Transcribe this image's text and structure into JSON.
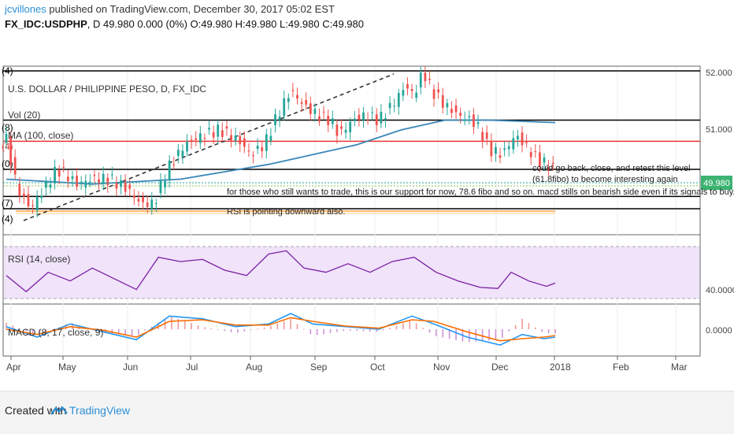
{
  "header": {
    "user": "jcvillones",
    "published": " published on TradingView.com, December 30, 2017 05:02 EST",
    "symbol": "FX_IDC:USDPHP",
    "ohlc": ", D 49.980 0.000 (0%) O:49.980 H:49.980 L:49.980 C:49.980"
  },
  "legend": {
    "title": "U.S. DOLLAR / PHILIPPINE PESO, D, FX_IDC",
    "vol": "Vol (20)",
    "ma": "MA (100, close)",
    "rsi": "RSI (14, close)",
    "macd": "MACD (8, 17, close, 9)"
  },
  "annotations": [
    "could go back, close, and retest this level",
    "(61.8fibo) to become interesting again",
    "for those who still wants to trade, this is our support for now, 78.6 fibo and so on. macd stills on bearish side even if its signals to buy.",
    "RSI is pointing downward also."
  ],
  "fib_tags": [
    "(4)",
    "(8)",
    "(4)",
    "(0)",
    "(7)",
    "(4)"
  ],
  "footer": {
    "created": "Created with",
    "brand": "TradingView"
  },
  "chart_data": {
    "type": "line",
    "title": "U.S. DOLLAR / PHILIPPINE PESO, D, FX_IDC",
    "price_axis": {
      "ylim": [
        48.8,
        52.0
      ],
      "ticks": [
        "52.000",
        "51.000"
      ],
      "last_price": "49.980"
    },
    "x_ticks": [
      "Apr",
      "May",
      "Jun",
      "Jul",
      "Aug",
      "Sep",
      "Oct",
      "Nov",
      "Dec",
      "2018",
      "Feb",
      "Mar"
    ],
    "price_series": [
      {
        "x": 1,
        "y": 50.6
      },
      {
        "x": 6,
        "y": 49.6
      },
      {
        "x": 12,
        "y": 49.2
      },
      {
        "x": 18,
        "y": 49.6
      },
      {
        "x": 24,
        "y": 50.0
      },
      {
        "x": 28,
        "y": 49.9
      },
      {
        "x": 33,
        "y": 49.7
      },
      {
        "x": 40,
        "y": 49.8
      },
      {
        "x": 48,
        "y": 49.8
      },
      {
        "x": 56,
        "y": 49.6
      },
      {
        "x": 62,
        "y": 49.3
      },
      {
        "x": 68,
        "y": 49.3
      },
      {
        "x": 74,
        "y": 50.0
      },
      {
        "x": 82,
        "y": 50.5
      },
      {
        "x": 90,
        "y": 50.7
      },
      {
        "x": 98,
        "y": 50.8
      },
      {
        "x": 106,
        "y": 50.6
      },
      {
        "x": 112,
        "y": 50.3
      },
      {
        "x": 118,
        "y": 50.5
      },
      {
        "x": 124,
        "y": 51.1
      },
      {
        "x": 130,
        "y": 51.6
      },
      {
        "x": 136,
        "y": 51.3
      },
      {
        "x": 142,
        "y": 51.1
      },
      {
        "x": 148,
        "y": 51.0
      },
      {
        "x": 152,
        "y": 50.7
      },
      {
        "x": 158,
        "y": 51.0
      },
      {
        "x": 164,
        "y": 51.1
      },
      {
        "x": 170,
        "y": 51.0
      },
      {
        "x": 176,
        "y": 51.3
      },
      {
        "x": 182,
        "y": 51.7
      },
      {
        "x": 186,
        "y": 51.5
      },
      {
        "x": 190,
        "y": 52.0
      },
      {
        "x": 194,
        "y": 51.6
      },
      {
        "x": 200,
        "y": 51.3
      },
      {
        "x": 206,
        "y": 51.1
      },
      {
        "x": 212,
        "y": 51.0
      },
      {
        "x": 216,
        "y": 50.8
      },
      {
        "x": 220,
        "y": 50.4
      },
      {
        "x": 226,
        "y": 50.3
      },
      {
        "x": 232,
        "y": 50.7
      },
      {
        "x": 236,
        "y": 50.5
      },
      {
        "x": 242,
        "y": 50.2
      },
      {
        "x": 246,
        "y": 50.1
      },
      {
        "x": 250,
        "y": 50.0
      }
    ],
    "ma_series": [
      {
        "x": 1,
        "y": 49.8
      },
      {
        "x": 40,
        "y": 49.7
      },
      {
        "x": 80,
        "y": 49.8
      },
      {
        "x": 100,
        "y": 49.95
      },
      {
        "x": 120,
        "y": 50.1
      },
      {
        "x": 140,
        "y": 50.3
      },
      {
        "x": 160,
        "y": 50.5
      },
      {
        "x": 180,
        "y": 50.8
      },
      {
        "x": 200,
        "y": 51.0
      },
      {
        "x": 220,
        "y": 51.0
      },
      {
        "x": 250,
        "y": 50.95
      }
    ],
    "fib_levels": [
      52.0,
      51.0,
      50.57,
      50.0,
      49.45,
      49.2
    ],
    "rsi": {
      "label": "RSI (14, close)",
      "tick": "40.0000",
      "ylim": [
        20,
        80
      ],
      "values": [
        {
          "x": 1,
          "y": 45
        },
        {
          "x": 10,
          "y": 30
        },
        {
          "x": 20,
          "y": 48
        },
        {
          "x": 30,
          "y": 40
        },
        {
          "x": 40,
          "y": 52
        },
        {
          "x": 50,
          "y": 42
        },
        {
          "x": 60,
          "y": 32
        },
        {
          "x": 70,
          "y": 62
        },
        {
          "x": 80,
          "y": 58
        },
        {
          "x": 90,
          "y": 60
        },
        {
          "x": 100,
          "y": 50
        },
        {
          "x": 110,
          "y": 45
        },
        {
          "x": 120,
          "y": 65
        },
        {
          "x": 128,
          "y": 68
        },
        {
          "x": 136,
          "y": 52
        },
        {
          "x": 146,
          "y": 48
        },
        {
          "x": 156,
          "y": 56
        },
        {
          "x": 166,
          "y": 48
        },
        {
          "x": 176,
          "y": 58
        },
        {
          "x": 186,
          "y": 62
        },
        {
          "x": 196,
          "y": 48
        },
        {
          "x": 206,
          "y": 40
        },
        {
          "x": 216,
          "y": 34
        },
        {
          "x": 224,
          "y": 33
        },
        {
          "x": 230,
          "y": 48
        },
        {
          "x": 238,
          "y": 40
        },
        {
          "x": 246,
          "y": 35
        },
        {
          "x": 250,
          "y": 38
        }
      ]
    },
    "macd": {
      "label": "MACD (8, 17, close, 9)",
      "tick": "0.0000",
      "ylim": [
        -0.45,
        0.45
      ],
      "macd_line": [
        {
          "x": 1,
          "y": 0.05
        },
        {
          "x": 15,
          "y": -0.15
        },
        {
          "x": 30,
          "y": 0.1
        },
        {
          "x": 45,
          "y": -0.05
        },
        {
          "x": 60,
          "y": -0.2
        },
        {
          "x": 75,
          "y": 0.25
        },
        {
          "x": 90,
          "y": 0.2
        },
        {
          "x": 105,
          "y": 0.05
        },
        {
          "x": 120,
          "y": 0.1
        },
        {
          "x": 130,
          "y": 0.3
        },
        {
          "x": 140,
          "y": 0.1
        },
        {
          "x": 155,
          "y": 0.05
        },
        {
          "x": 170,
          "y": 0.0
        },
        {
          "x": 185,
          "y": 0.25
        },
        {
          "x": 195,
          "y": 0.1
        },
        {
          "x": 210,
          "y": -0.15
        },
        {
          "x": 225,
          "y": -0.3
        },
        {
          "x": 235,
          "y": -0.1
        },
        {
          "x": 245,
          "y": -0.18
        },
        {
          "x": 250,
          "y": -0.15
        }
      ],
      "signal_line": [
        {
          "x": 1,
          "y": 0.0
        },
        {
          "x": 15,
          "y": -0.1
        },
        {
          "x": 30,
          "y": 0.05
        },
        {
          "x": 45,
          "y": -0.02
        },
        {
          "x": 60,
          "y": -0.15
        },
        {
          "x": 75,
          "y": 0.15
        },
        {
          "x": 90,
          "y": 0.18
        },
        {
          "x": 105,
          "y": 0.08
        },
        {
          "x": 120,
          "y": 0.08
        },
        {
          "x": 130,
          "y": 0.22
        },
        {
          "x": 140,
          "y": 0.15
        },
        {
          "x": 155,
          "y": 0.06
        },
        {
          "x": 170,
          "y": 0.02
        },
        {
          "x": 185,
          "y": 0.18
        },
        {
          "x": 195,
          "y": 0.15
        },
        {
          "x": 210,
          "y": -0.05
        },
        {
          "x": 225,
          "y": -0.22
        },
        {
          "x": 235,
          "y": -0.18
        },
        {
          "x": 245,
          "y": -0.15
        },
        {
          "x": 250,
          "y": -0.12
        }
      ]
    },
    "colors": {
      "bull": "#26a69a",
      "bear": "#ef5350",
      "ma": "#3a87b8",
      "rsi": "#7b1fa2",
      "macd": "#2196f3",
      "signal": "#ff6d00",
      "fib_red": "#e53935",
      "support": "#ffa040"
    }
  }
}
